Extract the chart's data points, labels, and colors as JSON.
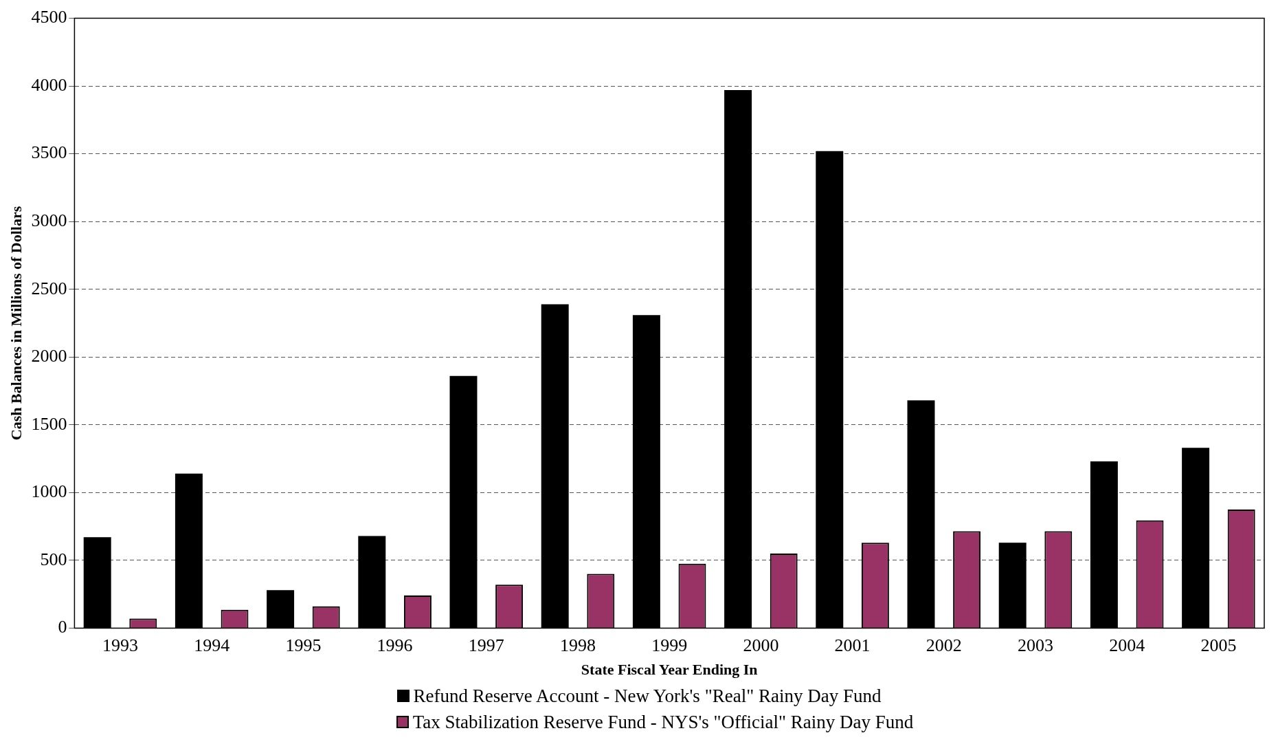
{
  "chart_data": {
    "type": "bar",
    "xlabel": "State Fiscal Year Ending In",
    "ylabel": "Cash Balances in Millions of Dollars",
    "categories": [
      "1993",
      "1994",
      "1995",
      "1996",
      "1997",
      "1998",
      "1999",
      "2000",
      "2001",
      "2002",
      "2003",
      "2004",
      "2005"
    ],
    "series": [
      {
        "name": "Refund Reserve Account - New York's \"Real\" Rainy Day Fund",
        "color": "#000000",
        "values": [
          670,
          1140,
          280,
          680,
          1860,
          2390,
          2310,
          3970,
          3520,
          1680,
          630,
          1230,
          1330
        ]
      },
      {
        "name": "Tax Stabilization Reserve Fund - NYS's \"Official\" Rainy Day Fund",
        "color": "#993366",
        "values": [
          70,
          135,
          160,
          240,
          320,
          400,
          475,
          550,
          630,
          715,
          715,
          795,
          875
        ]
      }
    ],
    "ylim": [
      0,
      4500
    ],
    "yticks": [
      0,
      500,
      1000,
      1500,
      2000,
      2500,
      3000,
      3500,
      4000,
      4500
    ],
    "grid": "y",
    "legend": "bottom"
  }
}
